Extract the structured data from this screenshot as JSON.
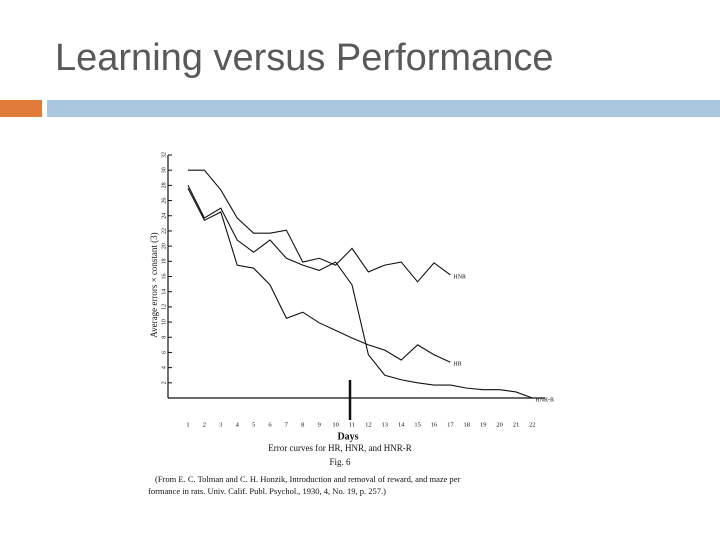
{
  "slide_title": "Learning versus Performance",
  "chart_data": {
    "type": "line",
    "ylabel": "Average errors × constant (3)",
    "xlabel": "Days",
    "caption": "Error curves for HR, HNR, and HNR-R",
    "figure_label": "Fig. 6",
    "source_lines": [
      "(From E. C. Tolman and C. H. Honzik, Introduction and removal of reward, and maze per",
      "formance in rats. Univ. Calif. Publ. Psychol., 1930, 4, No. 19, p. 257.)"
    ],
    "categories": [
      "1",
      "2",
      "3",
      "4",
      "5",
      "6",
      "7",
      "8",
      "9",
      "10",
      "11",
      "12",
      "13",
      "14",
      "15",
      "16",
      "17",
      "18",
      "19",
      "20",
      "21",
      "22"
    ],
    "ylim": [
      0,
      32
    ],
    "yticks": [
      2,
      4,
      6,
      8,
      10,
      12,
      14,
      16,
      18,
      20,
      22,
      24,
      26,
      28,
      30,
      32
    ],
    "color": "#111111",
    "series": [
      {
        "name": "HNR",
        "values": [
          30,
          30,
          27.4,
          23.7,
          21.7,
          21.7,
          22.1,
          17.9,
          18.4,
          17.5,
          19.7,
          16.6,
          17.5,
          17.9,
          15.3,
          17.8,
          16.2,
          null,
          null,
          null,
          null,
          null
        ]
      },
      {
        "name": "HR",
        "values": [
          27.6,
          23.4,
          24.5,
          17.5,
          17.1,
          14.9,
          10.5,
          11.3,
          9.9,
          8.9,
          7.9,
          7.0,
          6.3,
          5.0,
          7.0,
          5.7,
          4.7,
          null,
          null,
          null,
          null,
          null
        ]
      },
      {
        "name": "HNR-R",
        "values": [
          28.0,
          23.7,
          25.0,
          20.8,
          19.2,
          20.8,
          18.4,
          17.5,
          16.8,
          17.9,
          14.9,
          5.7,
          3.0,
          2.4,
          2.0,
          1.7,
          1.7,
          1.3,
          1.1,
          1.1,
          0.8,
          0
        ]
      }
    ]
  }
}
